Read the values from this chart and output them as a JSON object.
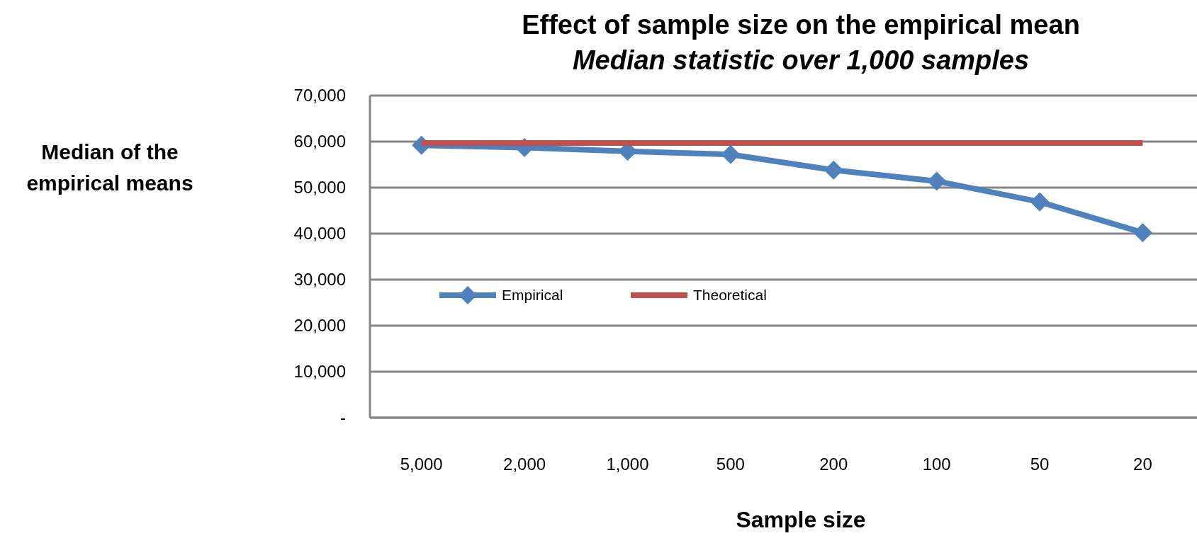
{
  "chart_data": {
    "type": "line",
    "title": "Effect of sample size on the empirical mean",
    "subtitle": "Median statistic over 1,000 samples",
    "xlabel": "Sample size",
    "ylabel": "Median of the empirical means",
    "categories": [
      "5,000",
      "2,000",
      "1,000",
      "500",
      "200",
      "100",
      "50",
      "20"
    ],
    "series": [
      {
        "name": "Empirical",
        "color": "#4f81bd",
        "marker": "diamond",
        "values": [
          59200,
          58700,
          57900,
          57200,
          53800,
          51400,
          46900,
          40200
        ]
      },
      {
        "name": "Theoretical",
        "color": "#c0504d",
        "marker": "none",
        "values": [
          59700,
          59700,
          59700,
          59700,
          59700,
          59700,
          59700,
          59700
        ]
      }
    ],
    "ylim": [
      0,
      70000
    ],
    "yticks": [
      {
        "value": 0,
        "label": "-"
      },
      {
        "value": 10000,
        "label": "10,000"
      },
      {
        "value": 20000,
        "label": "20,000"
      },
      {
        "value": 30000,
        "label": "30,000"
      },
      {
        "value": 40000,
        "label": "40,000"
      },
      {
        "value": 50000,
        "label": "50,000"
      },
      {
        "value": 60000,
        "label": "60,000"
      },
      {
        "value": 70000,
        "label": "70,000"
      }
    ],
    "grid": "y",
    "legend": "left"
  }
}
